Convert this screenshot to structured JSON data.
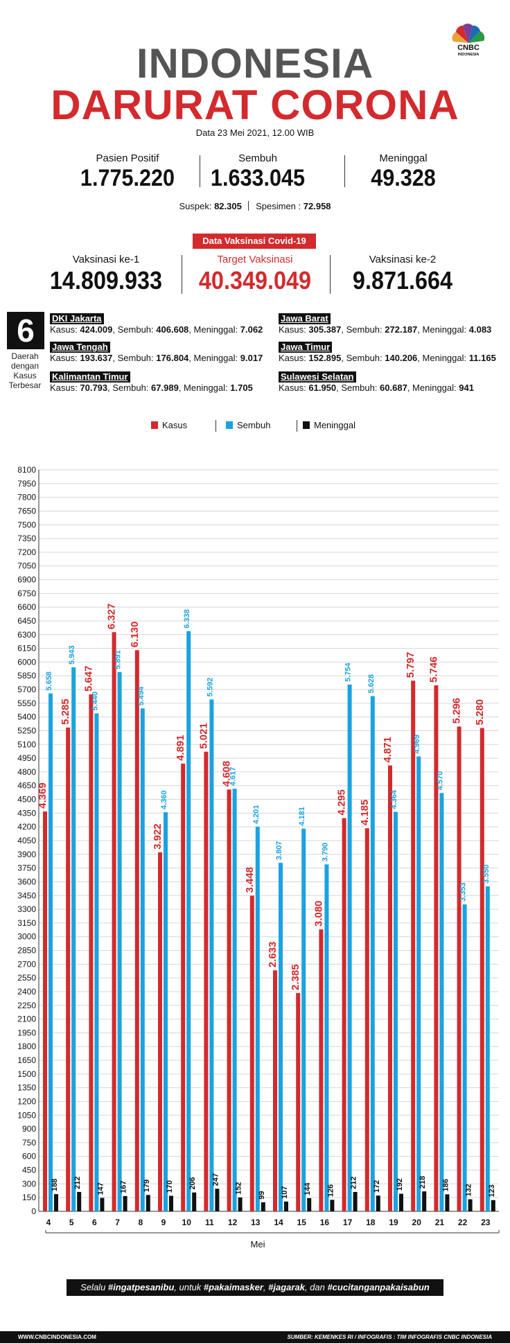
{
  "logo": {
    "text": "CNBC",
    "subtext": "INDONESIA",
    "colors": [
      "#e8a33a",
      "#d32a2d",
      "#7b3f98",
      "#1a6bb3",
      "#2a9a47",
      "#f0c419"
    ]
  },
  "header": {
    "title_line1": "INDONESIA",
    "title_line2": "DARURAT CORONA",
    "date": "Data 23 Mei 2021, 12.00 WIB"
  },
  "stats": [
    {
      "label": "Pasien Positif",
      "value": "1.775.220"
    },
    {
      "label": "Sembuh",
      "value": "1.633.045"
    },
    {
      "label": "Meninggal",
      "value": "49.328"
    }
  ],
  "suspek": {
    "suspek_label": "Suspek:",
    "suspek_value": "82.305",
    "spesimen_label": "Spesimen :",
    "spesimen_value": "72.958"
  },
  "vaksinasi": {
    "badge": "Data Vaksinasi Covid-19",
    "items": [
      {
        "label": "Vaksinasi ke-1",
        "value": "14.809.933"
      },
      {
        "label": "Target Vaksinasi",
        "value": "40.349.049"
      },
      {
        "label": "Vaksinasi ke-2",
        "value": "9.871.664"
      }
    ]
  },
  "regions": {
    "count": "6",
    "caption": [
      "Daerah",
      "dengan",
      "Kasus",
      "Terbesar"
    ],
    "items": [
      {
        "name": "DKI Jakarta",
        "kasus": "424.009",
        "sembuh": "406.608",
        "meninggal": "7.062"
      },
      {
        "name": "Jawa Barat",
        "kasus": "305.387",
        "sembuh": "272.187",
        "meninggal": "4.083"
      },
      {
        "name": "Jawa Tengah",
        "kasus": "193.637",
        "sembuh": "176.804",
        "meninggal": "9.017"
      },
      {
        "name": "Jawa Timur",
        "kasus": "152.895",
        "sembuh": "140.206",
        "meninggal": "11.165"
      },
      {
        "name": "Kalimantan Timur",
        "kasus": "70.793",
        "sembuh": "67.989",
        "meninggal": "1.705"
      },
      {
        "name": "Sulawesi Selatan",
        "kasus": "61.950",
        "sembuh": "60.687",
        "meninggal": "941"
      }
    ],
    "labels": {
      "kasus": "Kasus:",
      "sembuh": "Sembuh:",
      "meninggal": "Meninggal:"
    }
  },
  "colors": {
    "kasus": "#d32a2d",
    "sembuh": "#1aa3e0",
    "meninggal": "#111111"
  },
  "chart_data": {
    "type": "bar",
    "title": "",
    "xlabel": "Mei",
    "ylabel": "",
    "ylim": [
      0,
      8100
    ],
    "ytick_step": 150,
    "categories": [
      "4",
      "5",
      "6",
      "7",
      "8",
      "9",
      "10",
      "11",
      "12",
      "13",
      "14",
      "15",
      "16",
      "17",
      "18",
      "19",
      "20",
      "21",
      "22",
      "23"
    ],
    "series": [
      {
        "name": "Kasus",
        "values": [
          4369,
          5285,
          5647,
          6327,
          6130,
          3922,
          4891,
          5021,
          4608,
          3448,
          2633,
          2385,
          3080,
          4295,
          4185,
          4871,
          5797,
          5746,
          5296,
          5280
        ],
        "labels": [
          "4.369",
          "5.285",
          "5.647",
          "6.327",
          "6.130",
          "3.922",
          "4.891",
          "5.021",
          "4.608",
          "3.448",
          "2.633",
          "2.385",
          "3.080",
          "4.295",
          "4.185",
          "4.871",
          "5.797",
          "5.746",
          "5.296",
          "5.280"
        ]
      },
      {
        "name": "Sembuh",
        "values": [
          5658,
          5943,
          5440,
          5891,
          5494,
          4360,
          6338,
          5592,
          4617,
          4201,
          3807,
          4181,
          3790,
          5754,
          5628,
          4364,
          4969,
          4570,
          3353,
          3550
        ],
        "labels": [
          "5.658",
          "5.943",
          "5.440",
          "5.891",
          "5.494",
          "4.360",
          "6.338",
          "5.592",
          "4.617",
          "4.201",
          "3.807",
          "4.181",
          "3.790",
          "5.754",
          "5.628",
          "4.364",
          "4.969",
          "4.570",
          "3.353",
          "3.550"
        ]
      },
      {
        "name": "Meninggal",
        "values": [
          188,
          212,
          147,
          167,
          179,
          170,
          206,
          247,
          152,
          99,
          107,
          144,
          126,
          212,
          172,
          192,
          218,
          186,
          132,
          123
        ],
        "labels": [
          "188",
          "212",
          "147",
          "167",
          "179",
          "170",
          "206",
          "247",
          "152",
          "99",
          "107",
          "144",
          "126",
          "212",
          "172",
          "192",
          "218",
          "186",
          "132",
          "123"
        ]
      }
    ],
    "legend": "top-center",
    "grid": true
  },
  "footer": {
    "slogan_parts": [
      "Selalu ",
      "#ingatpesanibu",
      ", untuk ",
      "#pakaimasker",
      ", ",
      "#jagarak",
      ", dan ",
      "#cucitanganpakaisabun"
    ],
    "website": "WWW.CNBCINDONESIA.COM",
    "source": "SUMBER: KEMENKES RI / INFOGRAFIS : TIM INFOGRAFIS CNBC INDONESIA"
  }
}
